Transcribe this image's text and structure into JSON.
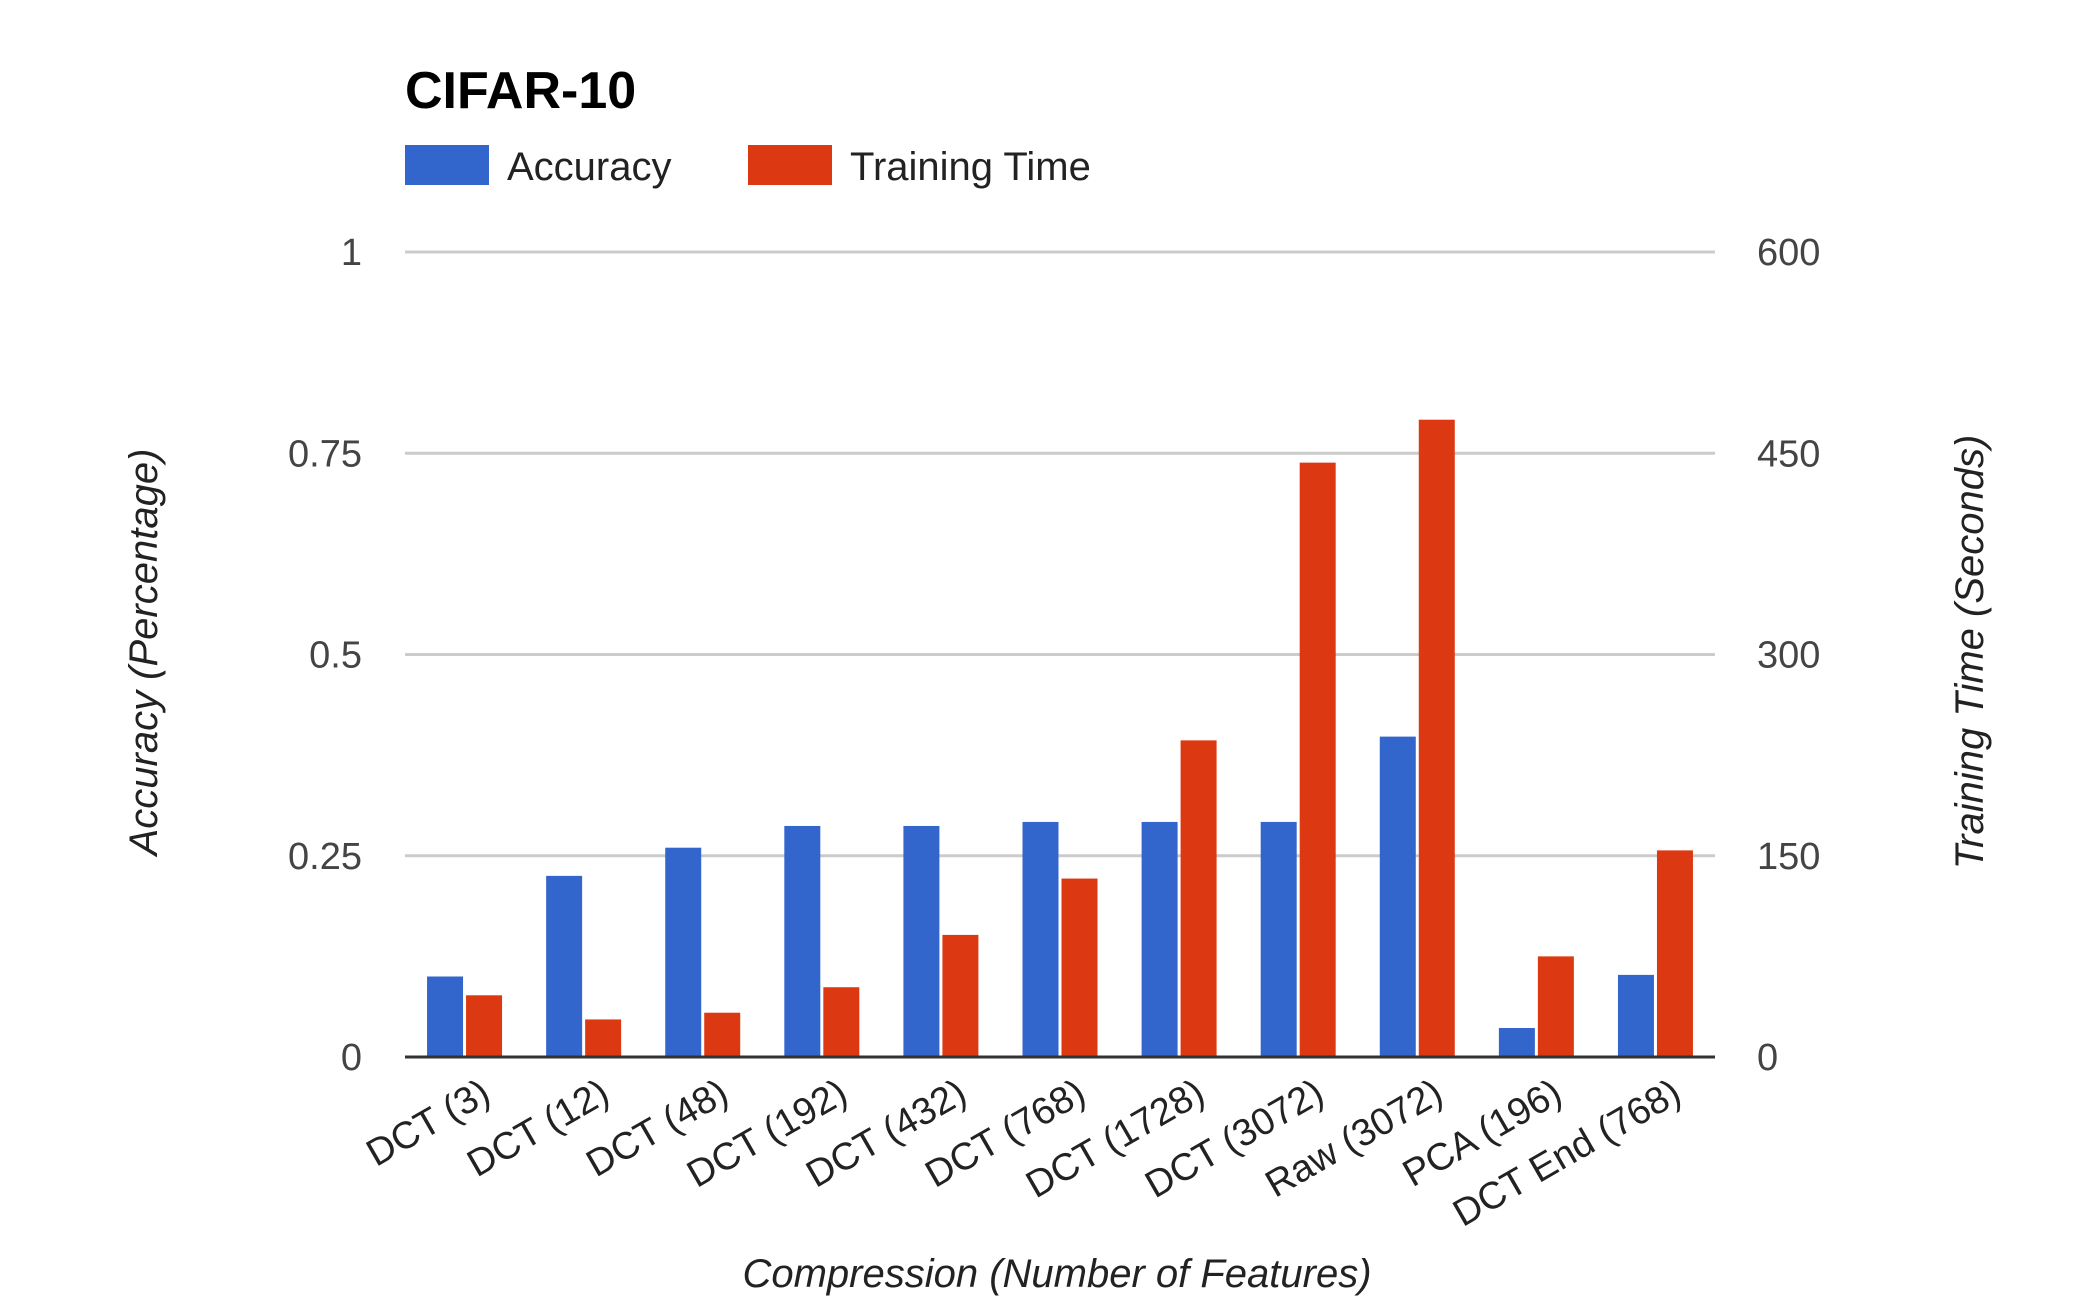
{
  "chart_data": {
    "type": "bar",
    "title": "CIFAR-10",
    "xlabel": "Compression (Number of Features)",
    "ylabel": "Accuracy (Percentage)",
    "y2label": "Training Time (Seconds)",
    "ylim": [
      0,
      1
    ],
    "y2lim": [
      0,
      600
    ],
    "yticks": [
      "0",
      "0.25",
      "0.5",
      "0.75",
      "1"
    ],
    "y2ticks": [
      "0",
      "150",
      "300",
      "450",
      "600"
    ],
    "grid": true,
    "legend_position": "top-left",
    "categories": [
      "DCT (3)",
      "DCT (12)",
      "DCT (48)",
      "DCT (192)",
      "DCT (432)",
      "DCT (768)",
      "DCT (1728)",
      "DCT (3072)",
      "Raw (3072)",
      "PCA (196)",
      "DCT End (768)"
    ],
    "series": [
      {
        "name": "Accuracy",
        "axis": "left",
        "color": "#3366cc",
        "values": [
          0.1,
          0.225,
          0.26,
          0.287,
          0.287,
          0.292,
          0.292,
          0.292,
          0.398,
          0.036,
          0.102
        ]
      },
      {
        "name": "Training Time",
        "axis": "right",
        "color": "#dc3912",
        "values": [
          46,
          28,
          33,
          52,
          91,
          133,
          236,
          443,
          475,
          75,
          154
        ]
      }
    ]
  }
}
